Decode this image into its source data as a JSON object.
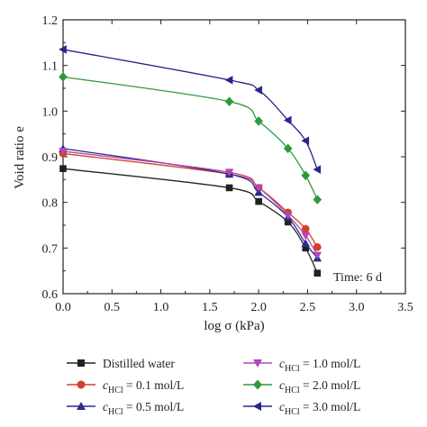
{
  "chart_data": {
    "type": "line",
    "xlabel": "log σ (kPa)",
    "ylabel": "Void ratio e",
    "xlim": [
      0.0,
      3.5
    ],
    "ylim": [
      0.6,
      1.2
    ],
    "xticks": [
      "0.0",
      "0.5",
      "1.0",
      "1.5",
      "2.0",
      "2.5",
      "3.0",
      "3.5"
    ],
    "yticks": [
      "0.6",
      "0.7",
      "0.8",
      "0.9",
      "1.0",
      "1.1",
      "1.2"
    ],
    "annotation": "Time: 6 d",
    "legend_placement": "bottom",
    "grid": false,
    "x": [
      0.0,
      1.7,
      2.0,
      2.3,
      2.48,
      2.6
    ],
    "series": [
      {
        "name": "Distilled water",
        "marker": "square",
        "color": "#222222",
        "values": [
          0.874,
          0.832,
          0.802,
          0.757,
          0.7,
          0.645
        ]
      },
      {
        "name": "c_HCl = 0.1 mol/L",
        "marker": "circle",
        "color": "#d6402a",
        "values": [
          0.907,
          0.862,
          0.832,
          0.778,
          0.742,
          0.702
        ]
      },
      {
        "name": "c_HCl = 0.5 mol/L",
        "marker": "triangle-up",
        "color": "#2b2b8f",
        "values": [
          0.918,
          0.862,
          0.822,
          0.768,
          0.71,
          0.678
        ]
      },
      {
        "name": "c_HCl = 1.0 mol/L",
        "marker": "triangle-down",
        "color": "#b347b3",
        "values": [
          0.912,
          0.866,
          0.832,
          0.772,
          0.727,
          0.684
        ]
      },
      {
        "name": "c_HCl = 2.0 mol/L",
        "marker": "diamond",
        "color": "#2e9a3a",
        "values": [
          1.075,
          1.021,
          0.978,
          0.918,
          0.859,
          0.806
        ]
      },
      {
        "name": "c_HCl = 3.0 mol/L",
        "marker": "triangle-left",
        "color": "#26268a",
        "values": [
          1.135,
          1.068,
          1.046,
          0.98,
          0.935,
          0.872
        ]
      }
    ]
  },
  "legend_labels": [
    {
      "prefix": "",
      "sub": "",
      "suffix": "Distilled water"
    },
    {
      "prefix": "c",
      "sub": "HCl",
      "suffix": " = 0.1 mol/L"
    },
    {
      "prefix": "c",
      "sub": "HCl",
      "suffix": " = 0.5 mol/L"
    },
    {
      "prefix": "c",
      "sub": "HCl",
      "suffix": " = 1.0 mol/L"
    },
    {
      "prefix": "c",
      "sub": "HCl",
      "suffix": " = 2.0 mol/L"
    },
    {
      "prefix": "c",
      "sub": "HCl",
      "suffix": " = 3.0 mol/L"
    }
  ]
}
